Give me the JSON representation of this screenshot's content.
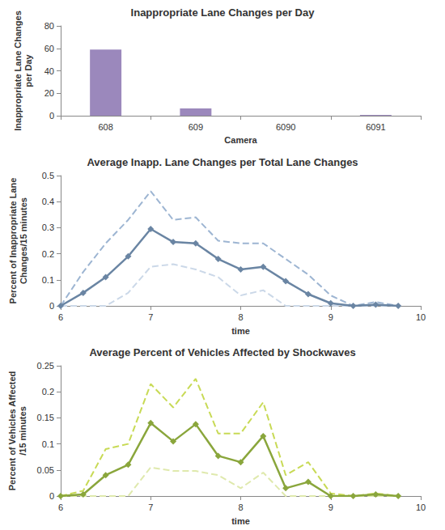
{
  "chart_data": [
    {
      "type": "bar",
      "title": "Inappropriate Lane Changes per Day",
      "x_label": "Camera",
      "y_label": "Inappropriate Lane Changes per Day",
      "categories": [
        "608",
        "609",
        "6090",
        "6091"
      ],
      "values": [
        59,
        6.5,
        0,
        0.8
      ],
      "color": "#9b88bc",
      "ylim": [
        0,
        80
      ],
      "yticks": [
        0,
        20,
        40,
        60,
        80
      ],
      "grid": false
    },
    {
      "type": "line",
      "title": "Average Inapp. Lane Changes per Total Lane Changes",
      "x_label": "time",
      "y_label": "Percent of Inappropriate Lane Changes/15 minutes",
      "x": [
        6,
        6.25,
        6.5,
        6.75,
        7,
        7.25,
        7.5,
        7.75,
        8,
        8.25,
        8.5,
        8.75,
        9,
        9.25,
        9.5,
        9.75
      ],
      "series": [
        {
          "color": "#9db5d2",
          "line_style": "dashed",
          "marker": "none",
          "values": [
            0,
            0.13,
            0.24,
            0.33,
            0.44,
            0.33,
            0.34,
            0.25,
            0.24,
            0.24,
            0.18,
            0.12,
            0.04,
            0,
            0.015,
            0
          ]
        },
        {
          "color": "#cbd8e8",
          "line_style": "dashed",
          "marker": "none",
          "values": [
            0,
            0,
            0,
            0.05,
            0.15,
            0.16,
            0.14,
            0.11,
            0.04,
            0.06,
            0,
            0,
            0,
            0,
            0,
            0
          ]
        },
        {
          "color": "#6a85a3",
          "line_style": "solid",
          "marker": "diamond",
          "values": [
            0,
            0.05,
            0.11,
            0.19,
            0.295,
            0.245,
            0.24,
            0.18,
            0.14,
            0.15,
            0.095,
            0.045,
            0.01,
            0,
            0.005,
            0
          ]
        }
      ],
      "xlim": [
        6,
        10
      ],
      "xticks": [
        6,
        7,
        8,
        9,
        10
      ],
      "ylim": [
        0,
        0.5
      ],
      "yticks": [
        0,
        0.1,
        0.2,
        0.3,
        0.4,
        0.5
      ],
      "grid": false
    },
    {
      "type": "line",
      "title": "Average Percent of Vehicles Affected by Shockwaves",
      "x_label": "time",
      "y_label": "Percent of Vehicles Affected /15 minutes",
      "x": [
        6,
        6.25,
        6.5,
        6.75,
        7,
        7.25,
        7.5,
        7.75,
        8,
        8.25,
        8.5,
        8.75,
        9,
        9.25,
        9.5,
        9.75
      ],
      "series": [
        {
          "color": "#c8da55",
          "line_style": "dashed",
          "marker": "none",
          "values": [
            0,
            0.01,
            0.09,
            0.1,
            0.215,
            0.17,
            0.225,
            0.12,
            0.12,
            0.18,
            0.04,
            0.065,
            0.005,
            0,
            0.005,
            0
          ]
        },
        {
          "color": "#dfe9ad",
          "line_style": "dashed",
          "marker": "none",
          "values": [
            0,
            0,
            0,
            0,
            0.055,
            0.048,
            0.048,
            0.04,
            0.015,
            0.045,
            0,
            0,
            0,
            0,
            0,
            0
          ]
        },
        {
          "color": "#8aa63c",
          "line_style": "solid",
          "marker": "diamond",
          "values": [
            0,
            0.003,
            0.04,
            0.06,
            0.14,
            0.105,
            0.138,
            0.077,
            0.065,
            0.115,
            0.015,
            0.027,
            0,
            0,
            0.003,
            0
          ]
        }
      ],
      "xlim": [
        6,
        10
      ],
      "xticks": [
        6,
        7,
        8,
        9,
        10
      ],
      "ylim": [
        0,
        0.25
      ],
      "yticks": [
        0,
        0.05,
        0.1,
        0.15,
        0.2,
        0.25
      ],
      "grid": false
    }
  ]
}
